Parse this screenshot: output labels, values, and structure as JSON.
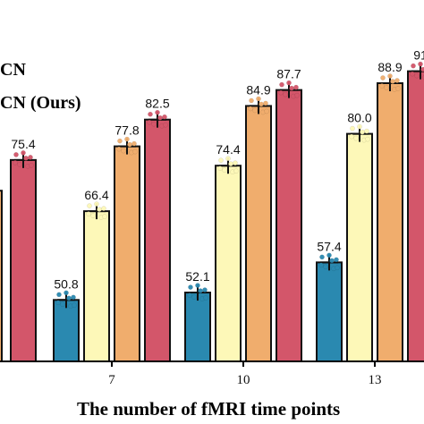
{
  "chart_data": {
    "type": "bar",
    "categories": [
      "7",
      "10",
      "13"
    ],
    "series": [
      {
        "name": "",
        "color": "#2a89b0",
        "values": [
          50.8,
          52.1,
          57.4
        ]
      },
      {
        "name": "",
        "color": "#fdf8b8",
        "values": [
          66.4,
          74.4,
          80.0
        ]
      },
      {
        "name": "",
        "color": "#f0ad6d",
        "values": [
          77.8,
          84.9,
          88.9
        ]
      },
      {
        "name": "",
        "color": "#d3566a",
        "values": [
          82.5,
          87.7,
          91
        ]
      }
    ],
    "partial_left": {
      "values": [
        70,
        75.4
      ],
      "labels": [
        "5",
        "75.4"
      ]
    },
    "value_labels": [
      [
        "50.8",
        "52.1",
        "57.4"
      ],
      [
        "66.4",
        "74.4",
        "80.0"
      ],
      [
        "77.8",
        "84.9",
        "88.9"
      ],
      [
        "82.5",
        "87.7",
        "91"
      ]
    ],
    "xlabel": "The number of  fMRI time points",
    "ylabel": "",
    "ylim": [
      40,
      95
    ],
    "legend": {
      "placement": "top-left",
      "entries": [
        "CN",
        "CN (Ours)"
      ]
    }
  }
}
